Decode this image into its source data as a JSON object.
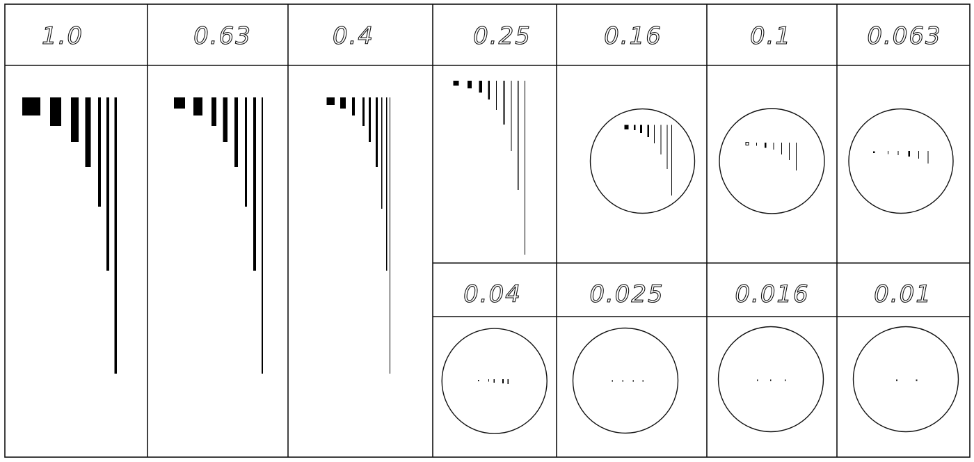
{
  "cells": [
    {
      "label": "1.0"
    },
    {
      "label": "0.63"
    },
    {
      "label": "0.4"
    },
    {
      "label": "0.25"
    },
    {
      "label": "0.16"
    },
    {
      "label": "0.1"
    },
    {
      "label": "0.063"
    },
    {
      "label": "0.04"
    },
    {
      "label": "0.025"
    },
    {
      "label": "0.016"
    },
    {
      "label": "0.01"
    }
  ],
  "colors": {
    "ink": "#000000",
    "background": "#ffffff"
  }
}
